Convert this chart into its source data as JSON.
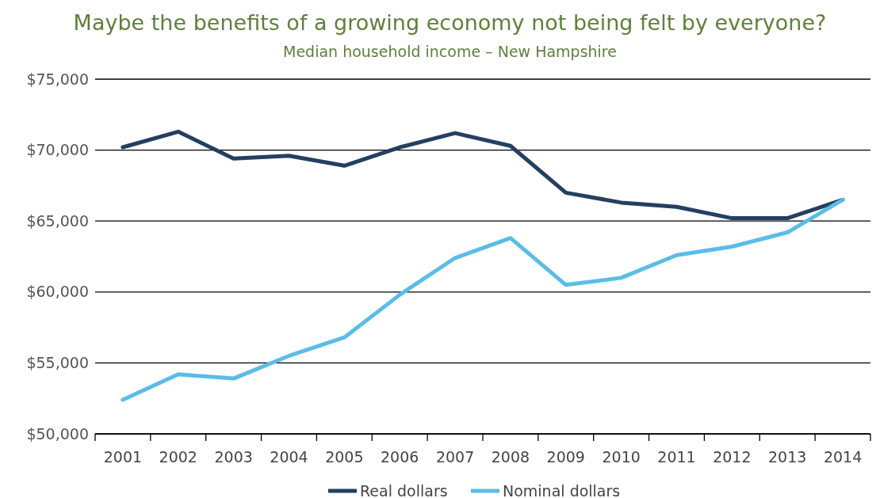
{
  "chart_data": {
    "type": "line",
    "title": "Maybe the benefits of a growing economy not being felt by everyone?",
    "subtitle": "Median household income – New Hampshire",
    "categories": [
      "2001",
      "2002",
      "2003",
      "2004",
      "2005",
      "2006",
      "2007",
      "2008",
      "2009",
      "2010",
      "2011",
      "2012",
      "2013",
      "2014"
    ],
    "series": [
      {
        "name": "Real dollars",
        "color": "#243f60",
        "values": [
          70200,
          71300,
          69400,
          69600,
          68900,
          70200,
          71200,
          70300,
          67000,
          66300,
          66000,
          65200,
          65200,
          66500
        ]
      },
      {
        "name": "Nominal dollars",
        "color": "#5bbde6",
        "values": [
          52400,
          54200,
          53900,
          55500,
          56800,
          59800,
          62400,
          63800,
          60500,
          61000,
          62600,
          63200,
          64200,
          66500
        ]
      }
    ],
    "ylim": [
      50000,
      75000
    ],
    "yticks": [
      {
        "value": 50000,
        "label": "$50,000"
      },
      {
        "value": 55000,
        "label": "$55,000"
      },
      {
        "value": 60000,
        "label": "$60,000"
      },
      {
        "value": 65000,
        "label": "$65,000"
      },
      {
        "value": 70000,
        "label": "$70,000"
      },
      {
        "value": 75000,
        "label": "$75,000"
      }
    ],
    "grid": "y",
    "legend": "bottom",
    "marker": "none",
    "line_style": "solid"
  }
}
